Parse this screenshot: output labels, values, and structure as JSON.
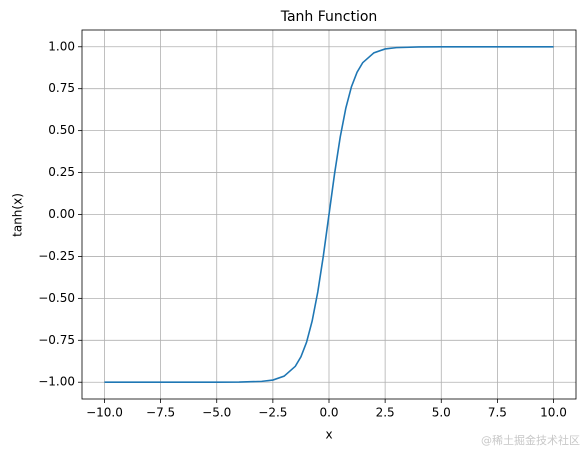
{
  "chart_data": {
    "type": "line",
    "title": "Tanh Function",
    "x_label": "x",
    "y_label": "tanh(x)",
    "x": [
      -10,
      -5,
      -4,
      -3,
      -2.5,
      -2,
      -1.5,
      -1.25,
      -1,
      -0.75,
      -0.5,
      -0.25,
      0,
      0.25,
      0.5,
      0.75,
      1,
      1.25,
      1.5,
      2,
      2.5,
      3,
      4,
      5,
      10
    ],
    "series": [
      {
        "name": "tanh(x)",
        "color": "#1f77b4",
        "values": [
          -1.0,
          -1.0,
          -0.999,
          -0.995,
          -0.987,
          -0.964,
          -0.905,
          -0.848,
          -0.762,
          -0.635,
          -0.462,
          -0.245,
          0.0,
          0.245,
          0.462,
          0.635,
          0.762,
          0.848,
          0.905,
          0.964,
          0.987,
          0.995,
          0.999,
          1.0,
          1.0
        ]
      }
    ],
    "xlim": [
      -11,
      11
    ],
    "ylim": [
      -1.1,
      1.1
    ],
    "xticks": [
      {
        "value": -10,
        "label": "−10.0"
      },
      {
        "value": -7.5,
        "label": "−7.5"
      },
      {
        "value": -5,
        "label": "−5.0"
      },
      {
        "value": -2.5,
        "label": "−2.5"
      },
      {
        "value": 0,
        "label": "0.0"
      },
      {
        "value": 2.5,
        "label": "2.5"
      },
      {
        "value": 5,
        "label": "5.0"
      },
      {
        "value": 7.5,
        "label": "7.5"
      },
      {
        "value": 10,
        "label": "10.0"
      }
    ],
    "yticks": [
      {
        "value": -1,
        "label": "−1.00"
      },
      {
        "value": -0.75,
        "label": "−0.75"
      },
      {
        "value": -0.5,
        "label": "−0.50"
      },
      {
        "value": -0.25,
        "label": "−0.25"
      },
      {
        "value": 0,
        "label": "0.00"
      },
      {
        "value": 0.25,
        "label": "0.25"
      },
      {
        "value": 0.5,
        "label": "0.50"
      },
      {
        "value": 0.75,
        "label": "0.75"
      },
      {
        "value": 1,
        "label": "1.00"
      }
    ],
    "grid": true,
    "watermark": "@稀土掘金技术社区"
  }
}
